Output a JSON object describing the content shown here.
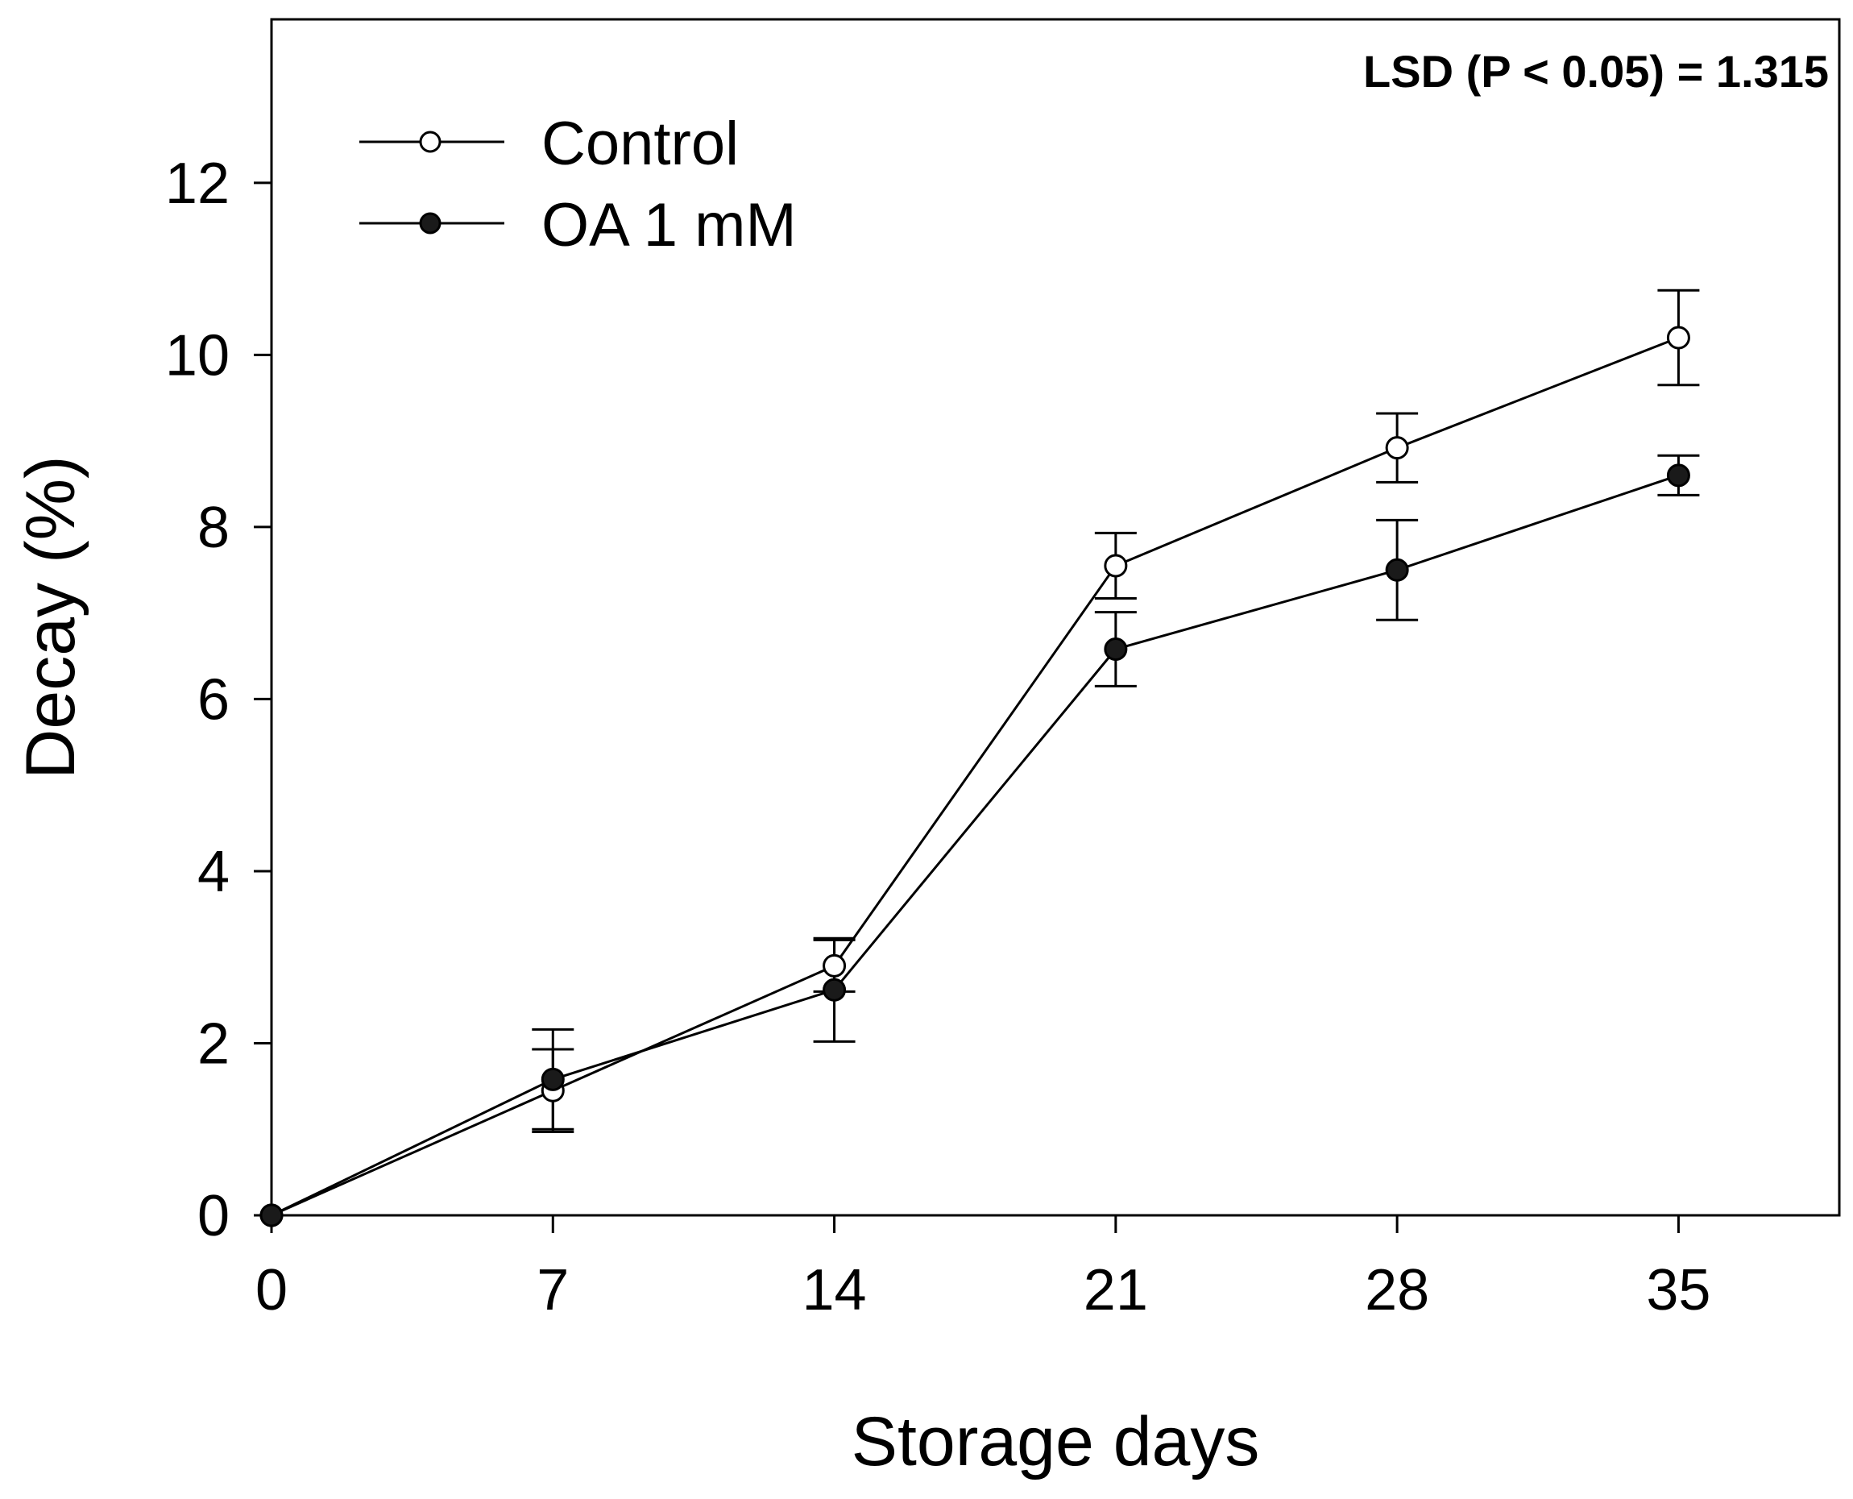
{
  "chart_data": {
    "type": "line",
    "title": "",
    "xlabel": "Storage days",
    "ylabel": "Decay (%)",
    "x": [
      0,
      7,
      14,
      21,
      28,
      35
    ],
    "xticks": [
      0,
      7,
      14,
      21,
      28,
      35
    ],
    "xtick_labels": [
      "0",
      "7",
      "14",
      "21",
      "28",
      "35"
    ],
    "yticks": [
      0,
      2,
      4,
      6,
      8,
      10,
      12
    ],
    "ytick_labels": [
      "0",
      "2",
      "4",
      "6",
      "8",
      "10",
      "12"
    ],
    "xlim": [
      0,
      39
    ],
    "ylim": [
      0,
      13.9
    ],
    "grid": false,
    "legend_position": "top-left",
    "annotation": "LSD (P < 0.05) = 1.315",
    "series": [
      {
        "name": "Control",
        "marker": "open-circle",
        "color": "#000000",
        "values": [
          0,
          1.45,
          2.9,
          7.55,
          8.92,
          10.2
        ],
        "errors": [
          0,
          0.48,
          0.3,
          0.38,
          0.4,
          0.55
        ]
      },
      {
        "name": "OA 1 mM",
        "marker": "filled-circle",
        "color": "#1a1a1a",
        "values": [
          0,
          1.58,
          2.62,
          6.58,
          7.5,
          8.6
        ],
        "errors": [
          0,
          0.58,
          0.6,
          0.43,
          0.58,
          0.23
        ]
      }
    ]
  }
}
